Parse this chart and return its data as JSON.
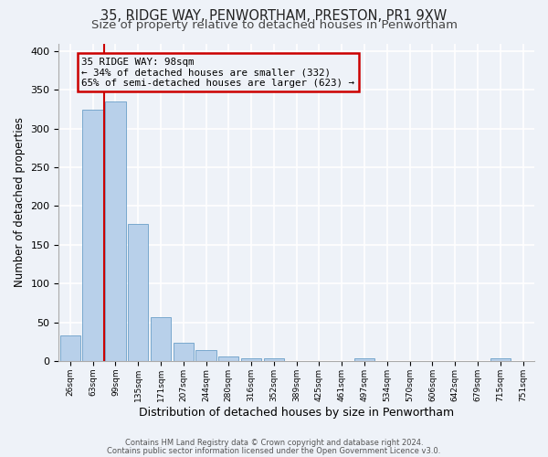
{
  "title": "35, RIDGE WAY, PENWORTHAM, PRESTON, PR1 9XW",
  "subtitle": "Size of property relative to detached houses in Penwortham",
  "xlabel": "Distribution of detached houses by size in Penwortham",
  "ylabel": "Number of detached properties",
  "bar_labels": [
    "26sqm",
    "63sqm",
    "99sqm",
    "135sqm",
    "171sqm",
    "207sqm",
    "244sqm",
    "280sqm",
    "316sqm",
    "352sqm",
    "389sqm",
    "425sqm",
    "461sqm",
    "497sqm",
    "534sqm",
    "570sqm",
    "606sqm",
    "642sqm",
    "679sqm",
    "715sqm",
    "751sqm"
  ],
  "bar_values": [
    33,
    325,
    335,
    177,
    57,
    24,
    14,
    6,
    3,
    4,
    0,
    0,
    0,
    3,
    0,
    0,
    0,
    0,
    0,
    3,
    0
  ],
  "bar_color": "#b8d0ea",
  "bar_edge_color": "#6a9fc8",
  "vline_color": "#cc0000",
  "ylim": [
    0,
    410
  ],
  "yticks": [
    0,
    50,
    100,
    150,
    200,
    250,
    300,
    350,
    400
  ],
  "annotation_line1": "35 RIDGE WAY: 98sqm",
  "annotation_line2": "← 34% of detached houses are smaller (332)",
  "annotation_line3": "65% of semi-detached houses are larger (623) →",
  "annotation_box_color": "#cc0000",
  "footnote1": "Contains HM Land Registry data © Crown copyright and database right 2024.",
  "footnote2": "Contains public sector information licensed under the Open Government Licence v3.0.",
  "bg_color": "#eef2f8",
  "grid_color": "#ffffff",
  "title_fontsize": 10.5,
  "subtitle_fontsize": 9.5,
  "xlabel_fontsize": 9,
  "ylabel_fontsize": 8.5
}
